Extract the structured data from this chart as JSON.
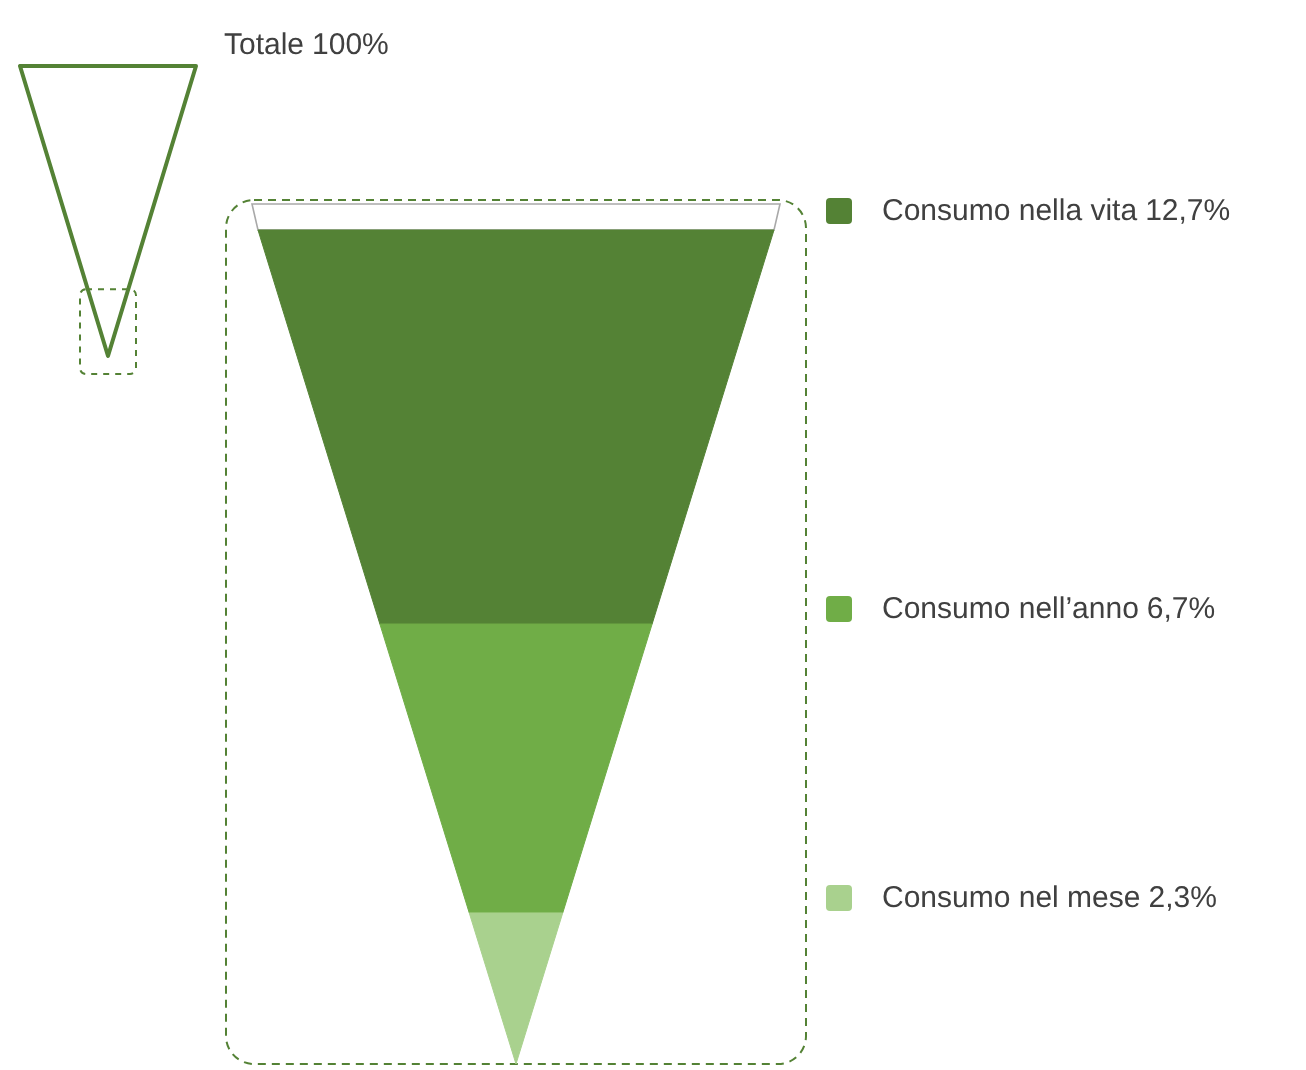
{
  "chart_data": {
    "type": "other",
    "categories": [
      "Totale",
      "Consumo nella vita",
      "Consumo nell’anno",
      "Consumo nel mese"
    ],
    "values": [
      100,
      12.7,
      6.7,
      2.3
    ],
    "value_labels": [
      "100%",
      "12,7%",
      "6,7%",
      "2,3%"
    ],
    "colors": [
      "#548235",
      "#548235",
      "#70ad47",
      "#a9d18e"
    ]
  }
}
